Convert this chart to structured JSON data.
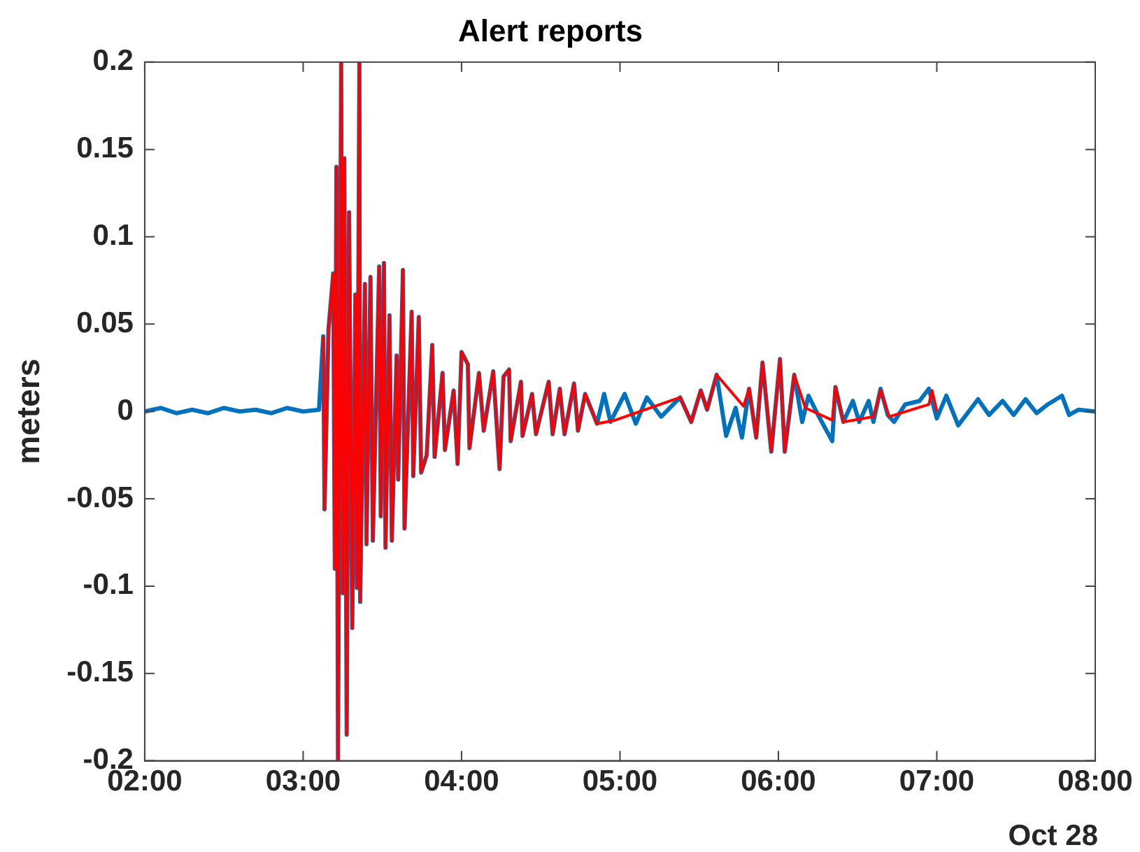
{
  "chart_data": {
    "type": "line",
    "title": "Alert reports",
    "ylabel": "meters",
    "annotations": [
      "Oct 28"
    ],
    "marker": "none",
    "grid": false,
    "xlim": [
      2,
      8
    ],
    "xticks": [
      {
        "value": 2,
        "label": "02:00"
      },
      {
        "value": 3,
        "label": "03:00"
      },
      {
        "value": 4,
        "label": "04:00"
      },
      {
        "value": 5,
        "label": "05:00"
      },
      {
        "value": 6,
        "label": "06:00"
      },
      {
        "value": 7,
        "label": "07:00"
      },
      {
        "value": 8,
        "label": "08:00"
      }
    ],
    "ylim": [
      -0.2,
      0.2
    ],
    "yticks": [
      -0.2,
      -0.15,
      -0.1,
      -0.05,
      0,
      0.05,
      0.1,
      0.15,
      0.2
    ],
    "series": [
      {
        "color": "#0072bd",
        "x": [
          2.0,
          2.1,
          2.2,
          2.3,
          2.4,
          2.5,
          2.6,
          2.7,
          2.8,
          2.9,
          3.0,
          3.1,
          3.127,
          3.135,
          3.16,
          3.19,
          3.2,
          3.21,
          3.22,
          3.24,
          3.25,
          3.26,
          3.275,
          3.29,
          3.31,
          3.33,
          3.34,
          3.355,
          3.36,
          3.39,
          3.4,
          3.425,
          3.44,
          3.48,
          3.49,
          3.51,
          3.52,
          3.545,
          3.56,
          3.59,
          3.6,
          3.63,
          3.64,
          3.685,
          3.695,
          3.73,
          3.745,
          3.78,
          3.815,
          3.83,
          3.88,
          3.895,
          3.95,
          3.975,
          4.0,
          4.04,
          4.05,
          4.11,
          4.14,
          4.2,
          4.24,
          4.265,
          4.3,
          4.31,
          4.375,
          4.385,
          4.445,
          4.47,
          4.55,
          4.575,
          4.62,
          4.65,
          4.71,
          4.735,
          4.78,
          4.855,
          4.9,
          4.94,
          5.03,
          5.1,
          5.17,
          5.26,
          5.38,
          5.45,
          5.51,
          5.55,
          5.61,
          5.67,
          5.73,
          5.77,
          5.815,
          5.86,
          5.9,
          5.955,
          6.01,
          6.04,
          6.1,
          6.15,
          6.19,
          6.25,
          6.34,
          6.36,
          6.41,
          6.47,
          6.51,
          6.57,
          6.6,
          6.645,
          6.69,
          6.73,
          6.8,
          6.89,
          6.95,
          7.0,
          7.06,
          7.135,
          7.21,
          7.26,
          7.33,
          7.415,
          7.485,
          7.56,
          7.63,
          7.7,
          7.79,
          7.835,
          7.895,
          8.0
        ],
        "values": [
          0.0,
          0.002,
          -0.001,
          0.001,
          -0.001,
          0.002,
          0.0,
          0.001,
          -0.001,
          0.002,
          0.0,
          0.001,
          0.043,
          -0.056,
          0.047,
          0.079,
          -0.09,
          0.14,
          -0.2,
          0.2,
          -0.104,
          0.145,
          -0.185,
          0.114,
          -0.124,
          0.067,
          -0.101,
          0.2,
          -0.109,
          0.073,
          -0.076,
          0.077,
          -0.074,
          0.083,
          -0.06,
          0.085,
          -0.078,
          0.055,
          -0.074,
          0.032,
          -0.039,
          0.081,
          -0.067,
          0.057,
          -0.037,
          0.054,
          -0.035,
          -0.025,
          0.038,
          -0.026,
          0.022,
          -0.022,
          0.012,
          -0.03,
          0.034,
          0.027,
          -0.021,
          0.022,
          -0.011,
          0.023,
          -0.033,
          0.02,
          0.024,
          -0.017,
          0.017,
          -0.014,
          0.01,
          -0.013,
          0.017,
          -0.013,
          0.013,
          -0.013,
          0.016,
          -0.011,
          0.01,
          -0.007,
          0.01,
          -0.006,
          0.01,
          -0.007,
          0.008,
          -0.003,
          0.008,
          -0.006,
          0.012,
          0.001,
          0.021,
          -0.014,
          0.002,
          -0.015,
          0.013,
          -0.015,
          0.028,
          -0.023,
          0.03,
          -0.023,
          0.021,
          -0.006,
          0.009,
          -0.002,
          -0.017,
          0.014,
          -0.006,
          0.006,
          -0.006,
          0.006,
          -0.006,
          0.013,
          -0.002,
          -0.006,
          0.004,
          0.006,
          0.013,
          -0.004,
          0.009,
          -0.008,
          0.001,
          0.007,
          -0.002,
          0.006,
          -0.002,
          0.007,
          -0.001,
          0.004,
          0.009,
          -0.002,
          0.001,
          0.0
        ]
      },
      {
        "color": "#ff0000",
        "x": [
          3.127,
          3.135,
          3.16,
          3.19,
          3.2,
          3.21,
          3.22,
          3.24,
          3.25,
          3.26,
          3.275,
          3.29,
          3.31,
          3.33,
          3.34,
          3.355,
          3.36,
          3.39,
          3.4,
          3.425,
          3.44,
          3.48,
          3.49,
          3.51,
          3.52,
          3.545,
          3.56,
          3.59,
          3.6,
          3.63,
          3.64,
          3.685,
          3.695,
          3.73,
          3.745,
          3.78,
          3.815,
          3.83,
          3.88,
          3.895,
          3.95,
          3.975,
          4.0,
          4.04,
          4.05,
          4.11,
          4.14,
          4.2,
          4.24,
          4.265,
          4.3,
          4.31,
          4.375,
          4.385,
          4.445,
          4.47,
          4.55,
          4.575,
          4.62,
          4.65,
          4.71,
          4.735,
          4.78,
          4.855,
          4.97,
          5.38,
          5.45,
          5.51,
          5.55,
          5.61,
          5.78,
          5.815,
          5.86,
          5.9,
          5.955,
          6.01,
          6.04,
          6.1,
          6.17,
          6.34,
          6.36,
          6.41,
          6.6,
          6.645,
          6.7,
          6.95,
          6.97,
          7.0
        ],
        "values": [
          0.043,
          -0.056,
          0.047,
          0.079,
          -0.09,
          0.14,
          -0.2,
          0.2,
          -0.104,
          0.145,
          -0.185,
          0.114,
          -0.124,
          0.067,
          -0.101,
          0.2,
          -0.109,
          0.073,
          -0.076,
          0.077,
          -0.074,
          0.083,
          -0.06,
          0.085,
          -0.078,
          0.055,
          -0.074,
          0.032,
          -0.039,
          0.081,
          -0.067,
          0.057,
          -0.037,
          0.054,
          -0.035,
          -0.025,
          0.038,
          -0.026,
          0.022,
          -0.022,
          0.012,
          -0.03,
          0.034,
          0.027,
          -0.021,
          0.022,
          -0.011,
          0.023,
          -0.033,
          0.02,
          0.024,
          -0.017,
          0.017,
          -0.014,
          0.01,
          -0.013,
          0.017,
          -0.013,
          0.013,
          -0.013,
          0.016,
          -0.011,
          0.01,
          -0.007,
          -0.005,
          0.008,
          -0.006,
          0.012,
          0.001,
          0.021,
          0.003,
          0.013,
          -0.015,
          0.028,
          -0.023,
          0.03,
          -0.023,
          0.021,
          0.002,
          -0.005,
          0.014,
          -0.006,
          -0.003,
          0.012,
          -0.003,
          0.004,
          0.012,
          0.0
        ]
      }
    ]
  }
}
